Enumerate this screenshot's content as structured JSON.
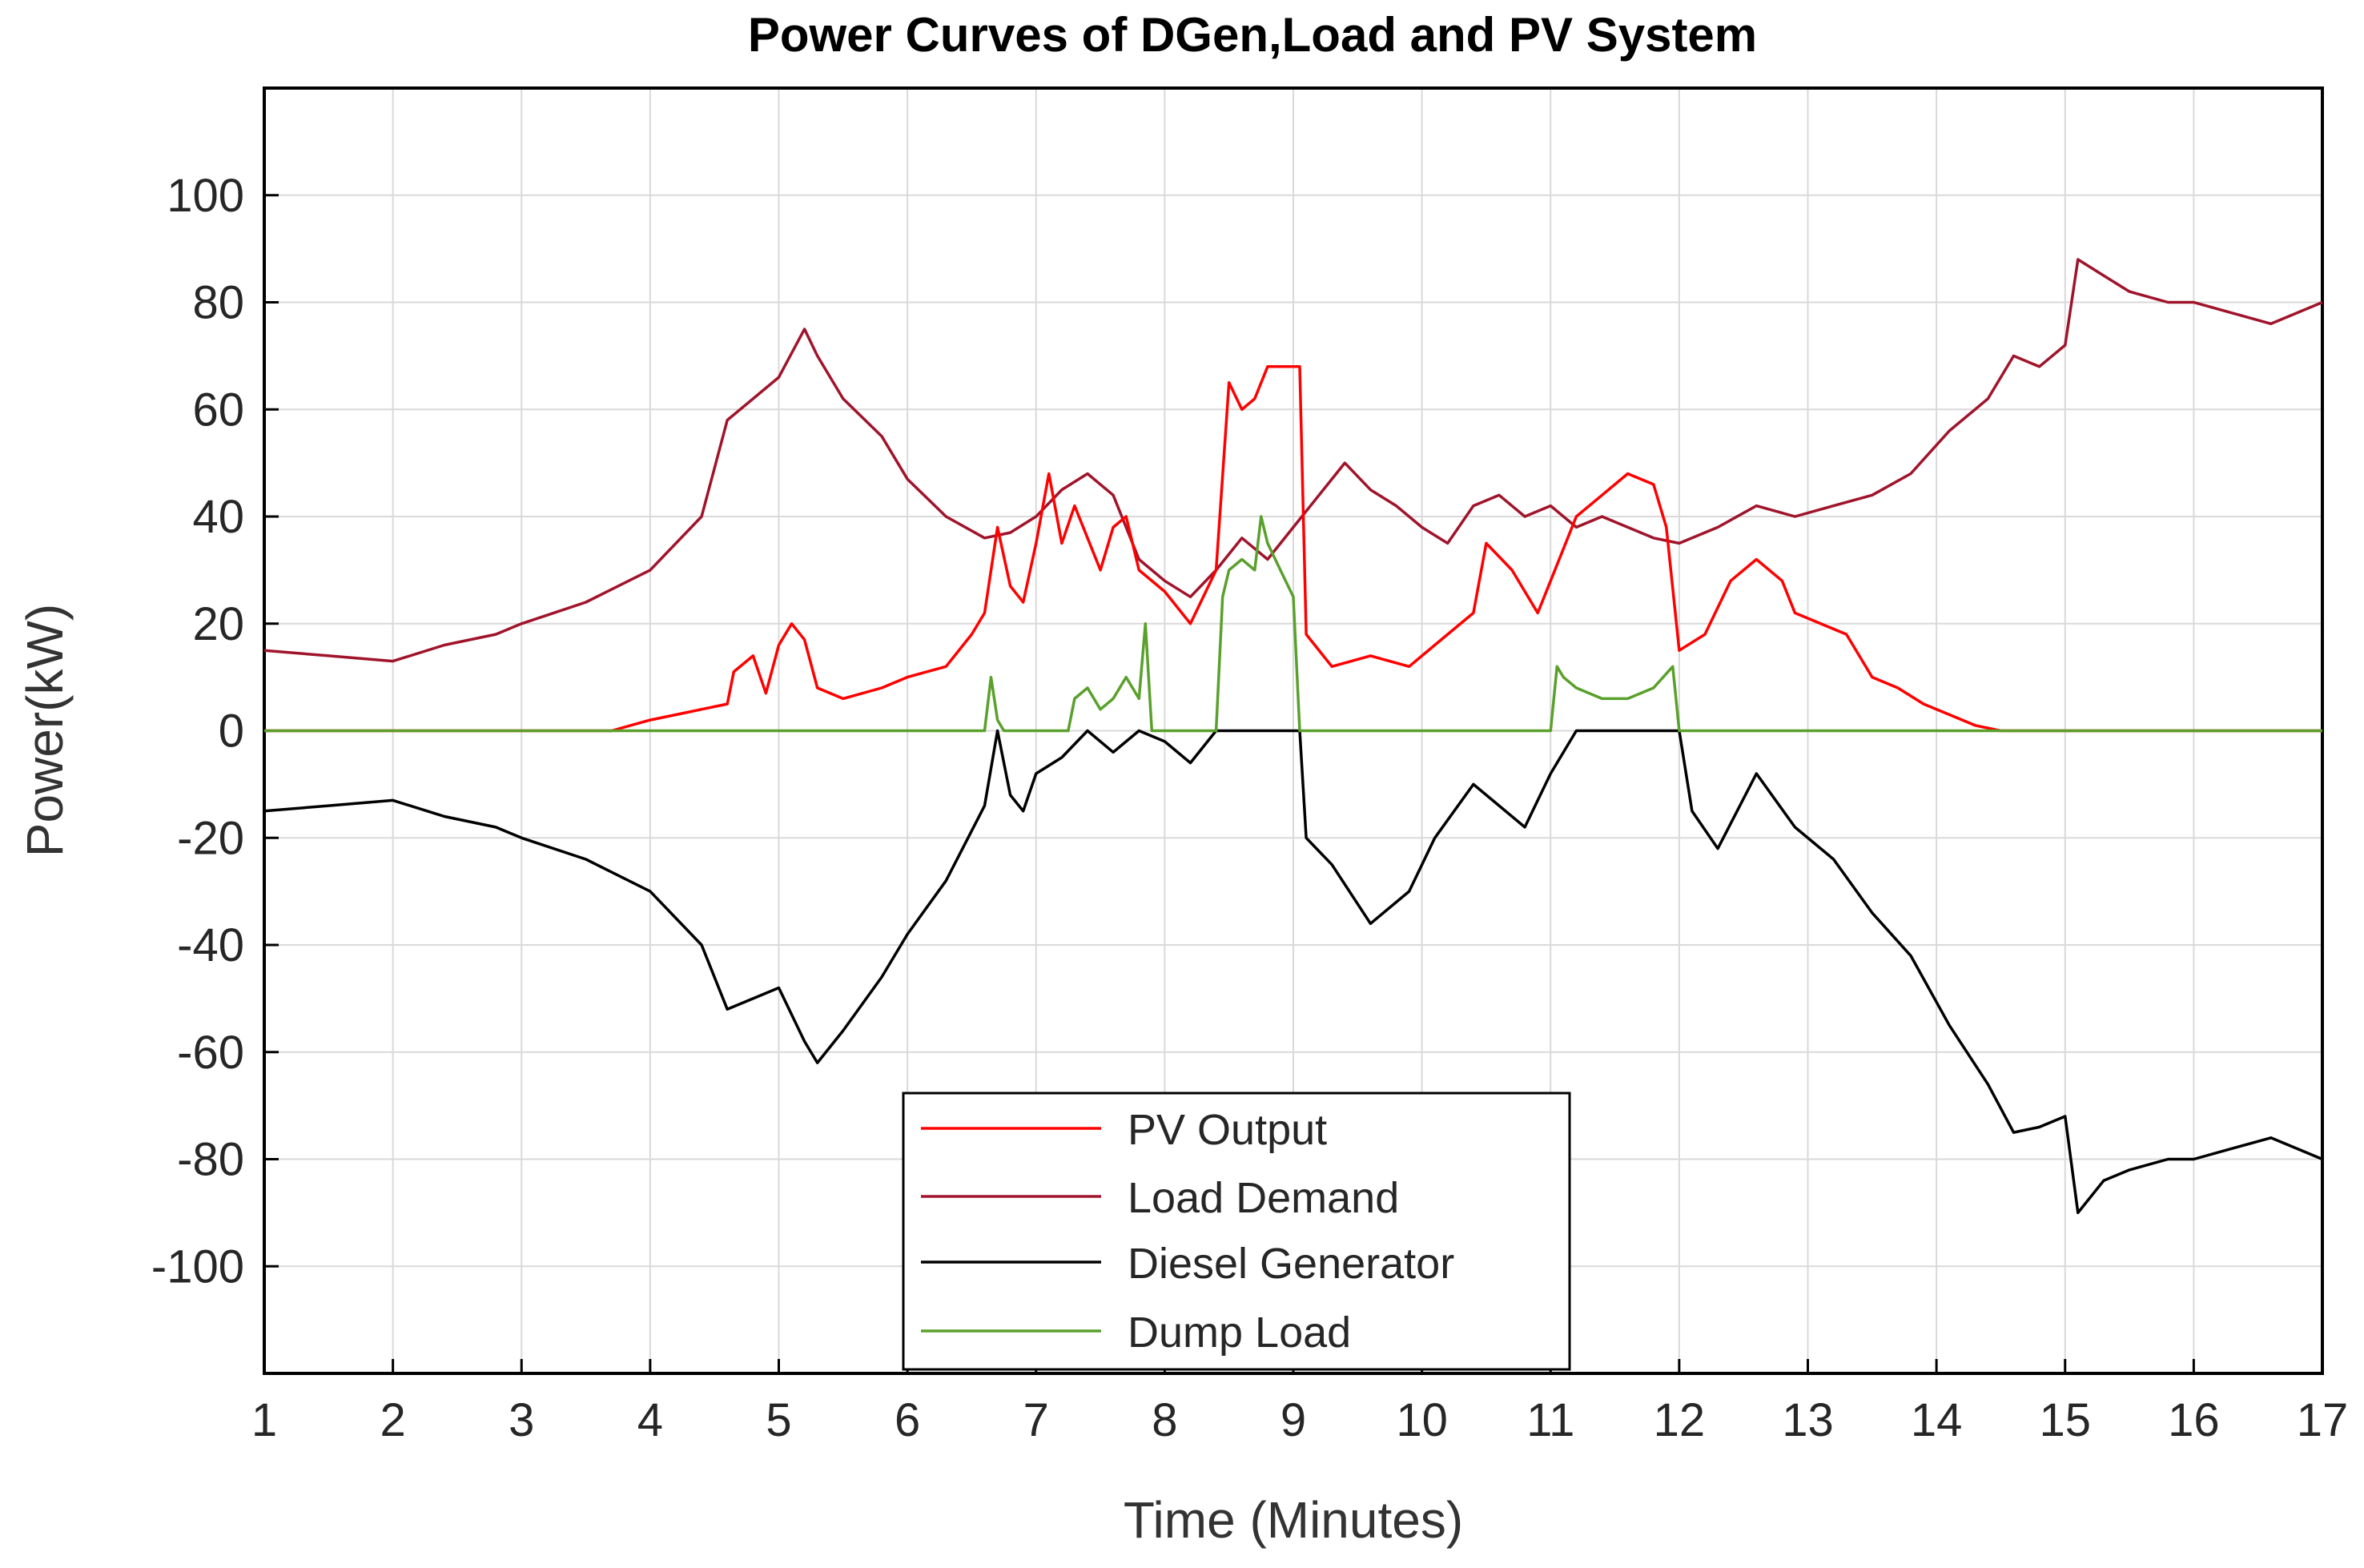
{
  "chart_data": {
    "type": "line",
    "title": "Power Curves of DGen,Load and PV System",
    "xlabel": "Time (Minutes)",
    "ylabel": "Power(kW)",
    "xlim": [
      1,
      17
    ],
    "ylim": [
      -120,
      120
    ],
    "xticks": [
      1,
      2,
      3,
      4,
      5,
      6,
      7,
      8,
      9,
      10,
      11,
      12,
      13,
      14,
      15,
      16,
      17
    ],
    "yticks": [
      -100,
      -80,
      -60,
      -40,
      -20,
      0,
      20,
      40,
      60,
      80,
      100
    ],
    "grid": true,
    "legend_position": "bottom-center",
    "series": [
      {
        "name": "PV Output",
        "color": "#ff0000",
        "points": [
          [
            1,
            0
          ],
          [
            3.7,
            0
          ],
          [
            4,
            2
          ],
          [
            4.3,
            3.5
          ],
          [
            4.6,
            5
          ],
          [
            4.65,
            11
          ],
          [
            4.8,
            14
          ],
          [
            4.9,
            7
          ],
          [
            5,
            16
          ],
          [
            5.1,
            20
          ],
          [
            5.2,
            17
          ],
          [
            5.3,
            8
          ],
          [
            5.5,
            6
          ],
          [
            5.8,
            8
          ],
          [
            6,
            10
          ],
          [
            6.3,
            12
          ],
          [
            6.5,
            18
          ],
          [
            6.6,
            22
          ],
          [
            6.7,
            38
          ],
          [
            6.8,
            27
          ],
          [
            6.9,
            24
          ],
          [
            7,
            35
          ],
          [
            7.1,
            48
          ],
          [
            7.2,
            35
          ],
          [
            7.3,
            42
          ],
          [
            7.5,
            30
          ],
          [
            7.6,
            38
          ],
          [
            7.7,
            40
          ],
          [
            7.8,
            30
          ],
          [
            8,
            26
          ],
          [
            8.2,
            20
          ],
          [
            8.4,
            30
          ],
          [
            8.5,
            65
          ],
          [
            8.6,
            60
          ],
          [
            8.7,
            62
          ],
          [
            8.8,
            68
          ],
          [
            9.05,
            68
          ],
          [
            9.1,
            18
          ],
          [
            9.3,
            12
          ],
          [
            9.6,
            14
          ],
          [
            9.9,
            12
          ],
          [
            10.2,
            18
          ],
          [
            10.4,
            22
          ],
          [
            10.5,
            35
          ],
          [
            10.7,
            30
          ],
          [
            10.9,
            22
          ],
          [
            11,
            28
          ],
          [
            11.2,
            40
          ],
          [
            11.4,
            44
          ],
          [
            11.6,
            48
          ],
          [
            11.8,
            46
          ],
          [
            11.9,
            38
          ],
          [
            12,
            15
          ],
          [
            12.2,
            18
          ],
          [
            12.4,
            28
          ],
          [
            12.6,
            32
          ],
          [
            12.8,
            28
          ],
          [
            12.9,
            22
          ],
          [
            13.1,
            20
          ],
          [
            13.3,
            18
          ],
          [
            13.5,
            10
          ],
          [
            13.7,
            8
          ],
          [
            13.9,
            5
          ],
          [
            14.1,
            3
          ],
          [
            14.3,
            1
          ],
          [
            14.5,
            0
          ],
          [
            17,
            0
          ]
        ]
      },
      {
        "name": "Load Demand",
        "color": "#a0142b",
        "points": [
          [
            1,
            15
          ],
          [
            1.5,
            14
          ],
          [
            2,
            13
          ],
          [
            2.4,
            16
          ],
          [
            2.8,
            18
          ],
          [
            3,
            20
          ],
          [
            3.5,
            24
          ],
          [
            4,
            30
          ],
          [
            4.4,
            40
          ],
          [
            4.6,
            58
          ],
          [
            4.8,
            62
          ],
          [
            5,
            66
          ],
          [
            5.2,
            75
          ],
          [
            5.3,
            70
          ],
          [
            5.5,
            62
          ],
          [
            5.8,
            55
          ],
          [
            6,
            47
          ],
          [
            6.3,
            40
          ],
          [
            6.6,
            36
          ],
          [
            6.8,
            37
          ],
          [
            7,
            40
          ],
          [
            7.2,
            45
          ],
          [
            7.4,
            48
          ],
          [
            7.6,
            44
          ],
          [
            7.8,
            32
          ],
          [
            8,
            28
          ],
          [
            8.2,
            25
          ],
          [
            8.4,
            30
          ],
          [
            8.6,
            36
          ],
          [
            8.8,
            32
          ],
          [
            9,
            38
          ],
          [
            9.2,
            44
          ],
          [
            9.4,
            50
          ],
          [
            9.6,
            45
          ],
          [
            9.8,
            42
          ],
          [
            10,
            38
          ],
          [
            10.2,
            35
          ],
          [
            10.4,
            42
          ],
          [
            10.6,
            44
          ],
          [
            10.8,
            40
          ],
          [
            11,
            42
          ],
          [
            11.2,
            38
          ],
          [
            11.4,
            40
          ],
          [
            11.6,
            38
          ],
          [
            11.8,
            36
          ],
          [
            12,
            35
          ],
          [
            12.3,
            38
          ],
          [
            12.6,
            42
          ],
          [
            12.9,
            40
          ],
          [
            13.2,
            42
          ],
          [
            13.5,
            44
          ],
          [
            13.8,
            48
          ],
          [
            14.1,
            56
          ],
          [
            14.4,
            62
          ],
          [
            14.6,
            70
          ],
          [
            14.8,
            68
          ],
          [
            15,
            72
          ],
          [
            15.1,
            88
          ],
          [
            15.3,
            85
          ],
          [
            15.5,
            82
          ],
          [
            15.8,
            80
          ],
          [
            16,
            80
          ],
          [
            16.3,
            78
          ],
          [
            16.6,
            76
          ],
          [
            16.8,
            78
          ],
          [
            17,
            80
          ]
        ]
      },
      {
        "name": "Diesel Generator",
        "color": "#000000",
        "points": [
          [
            1,
            -15
          ],
          [
            1.5,
            -14
          ],
          [
            2,
            -13
          ],
          [
            2.4,
            -16
          ],
          [
            2.8,
            -18
          ],
          [
            3,
            -20
          ],
          [
            3.5,
            -24
          ],
          [
            4,
            -30
          ],
          [
            4.4,
            -40
          ],
          [
            4.6,
            -52
          ],
          [
            4.8,
            -50
          ],
          [
            5,
            -48
          ],
          [
            5.2,
            -58
          ],
          [
            5.3,
            -62
          ],
          [
            5.5,
            -56
          ],
          [
            5.8,
            -46
          ],
          [
            6,
            -38
          ],
          [
            6.3,
            -28
          ],
          [
            6.6,
            -14
          ],
          [
            6.7,
            0
          ],
          [
            6.8,
            -12
          ],
          [
            6.9,
            -15
          ],
          [
            7,
            -8
          ],
          [
            7.2,
            -5
          ],
          [
            7.4,
            0
          ],
          [
            7.6,
            -4
          ],
          [
            7.8,
            0
          ],
          [
            8,
            -2
          ],
          [
            8.2,
            -6
          ],
          [
            8.4,
            0
          ],
          [
            9.05,
            0
          ],
          [
            9.1,
            -20
          ],
          [
            9.3,
            -25
          ],
          [
            9.6,
            -36
          ],
          [
            9.9,
            -30
          ],
          [
            10.1,
            -20
          ],
          [
            10.4,
            -10
          ],
          [
            10.6,
            -14
          ],
          [
            10.8,
            -18
          ],
          [
            11,
            -8
          ],
          [
            11.2,
            0
          ],
          [
            12,
            0
          ],
          [
            12.1,
            -15
          ],
          [
            12.3,
            -22
          ],
          [
            12.6,
            -8
          ],
          [
            12.9,
            -18
          ],
          [
            13.2,
            -24
          ],
          [
            13.5,
            -34
          ],
          [
            13.8,
            -42
          ],
          [
            14.1,
            -55
          ],
          [
            14.4,
            -66
          ],
          [
            14.6,
            -75
          ],
          [
            14.8,
            -74
          ],
          [
            15,
            -72
          ],
          [
            15.1,
            -90
          ],
          [
            15.3,
            -84
          ],
          [
            15.5,
            -82
          ],
          [
            15.8,
            -80
          ],
          [
            16,
            -80
          ],
          [
            16.3,
            -78
          ],
          [
            16.6,
            -76
          ],
          [
            16.8,
            -78
          ],
          [
            17,
            -80
          ]
        ]
      },
      {
        "name": "Dump Load",
        "color": "#5aa02c",
        "points": [
          [
            1,
            0
          ],
          [
            6.6,
            0
          ],
          [
            6.65,
            10
          ],
          [
            6.7,
            2
          ],
          [
            6.75,
            0
          ],
          [
            7.25,
            0
          ],
          [
            7.3,
            6
          ],
          [
            7.4,
            8
          ],
          [
            7.5,
            4
          ],
          [
            7.6,
            6
          ],
          [
            7.7,
            10
          ],
          [
            7.8,
            6
          ],
          [
            7.85,
            20
          ],
          [
            7.9,
            0
          ],
          [
            8.4,
            0
          ],
          [
            8.45,
            25
          ],
          [
            8.5,
            30
          ],
          [
            8.6,
            32
          ],
          [
            8.7,
            30
          ],
          [
            8.75,
            40
          ],
          [
            8.8,
            35
          ],
          [
            8.9,
            30
          ],
          [
            9,
            25
          ],
          [
            9.05,
            0
          ],
          [
            11,
            0
          ],
          [
            11.05,
            12
          ],
          [
            11.1,
            10
          ],
          [
            11.2,
            8
          ],
          [
            11.4,
            6
          ],
          [
            11.6,
            6
          ],
          [
            11.8,
            8
          ],
          [
            11.95,
            12
          ],
          [
            12,
            0
          ],
          [
            17,
            0
          ]
        ]
      }
    ]
  }
}
